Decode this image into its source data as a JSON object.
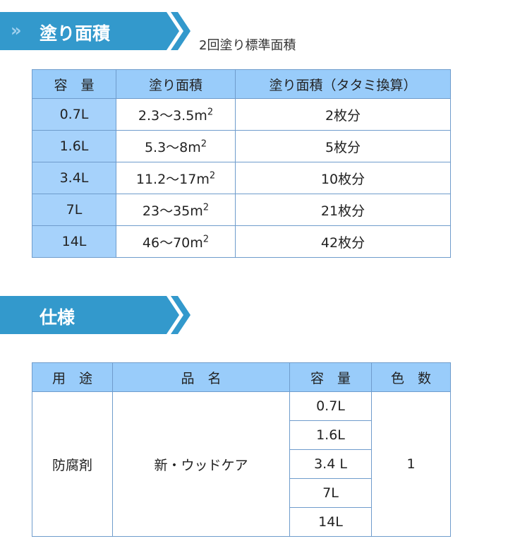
{
  "section1": {
    "chevrons": "»",
    "title": "塗り面積",
    "subtitle": "2回塗り標準面積",
    "headers": [
      "容　量",
      "塗り面積",
      "塗り面積（タタミ換算）"
    ],
    "rows": [
      [
        "0.7L",
        "2.3～3.5m",
        "2枚分"
      ],
      [
        "1.6L",
        "5.3～8m",
        "5枚分"
      ],
      [
        "3.4L",
        "11.2～17m",
        "10枚分"
      ],
      [
        "7L",
        "23～35m",
        "21枚分"
      ],
      [
        "14L",
        "46～70m",
        "42枚分"
      ]
    ],
    "unit_sup": "2"
  },
  "section2": {
    "title": "仕様",
    "headers": [
      "用　途",
      "品　名",
      "容　量",
      "色　数"
    ],
    "use": "防腐剤",
    "product": "新・ウッドケア",
    "capacities": [
      "0.7L",
      "1.6L",
      "3.4 L",
      "7L",
      "14L"
    ],
    "colors": "1"
  },
  "colors": {
    "banner": "#3399cc",
    "header": "#99ccfa",
    "border": "#6f9ccc"
  }
}
